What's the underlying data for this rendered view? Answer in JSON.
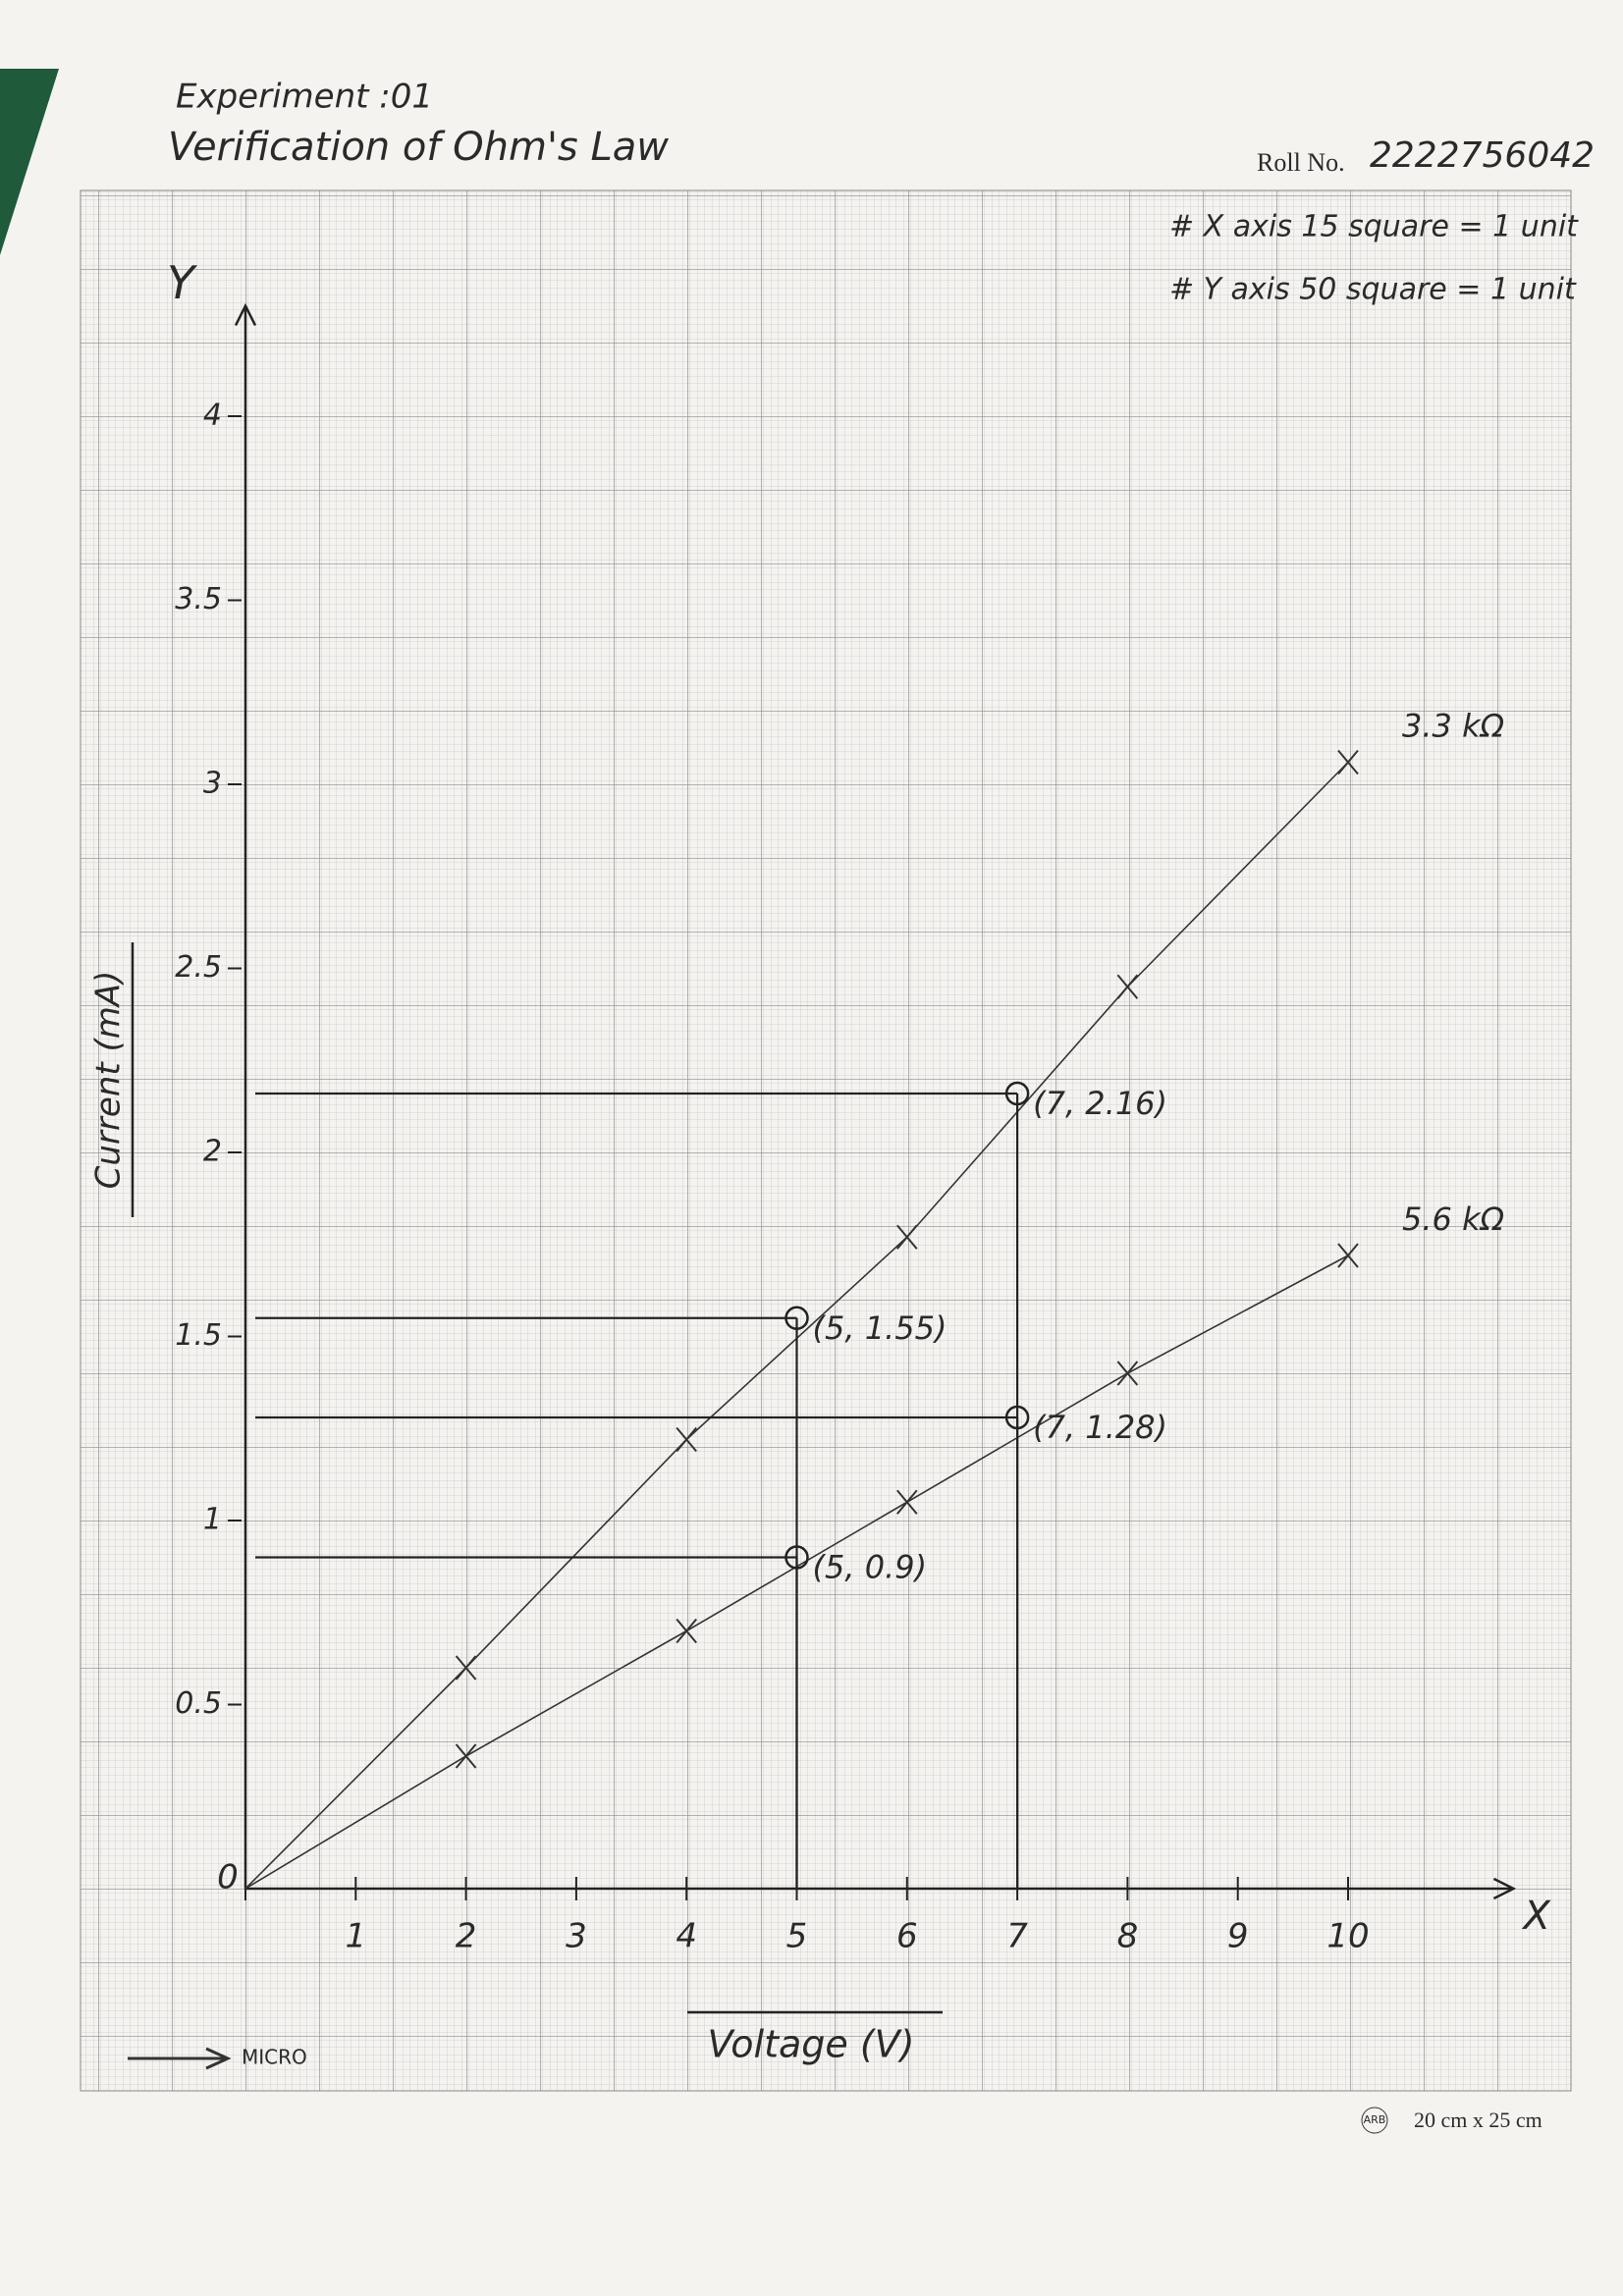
{
  "header": {
    "experiment": "Experiment :01",
    "title": "Verification of Ohm's Law",
    "roll_label": "Roll No.",
    "roll_number": "2222756042",
    "notes": [
      "# X axis 15 square = 1 unit",
      "# Y axis 50 square = 1 unit"
    ]
  },
  "footer": {
    "brand": "MICRO",
    "maker": "ARB",
    "size": "20 cm x 25 cm"
  },
  "chart_data": {
    "type": "line",
    "x_label": "Voltage (V)",
    "y_label": "Current (mA)",
    "x_axis_letter": "X",
    "y_axis_letter": "Y",
    "x": [
      0,
      2,
      4,
      6,
      8,
      10
    ],
    "series": [
      {
        "name": "3.3 kΩ",
        "color": "#333333",
        "values": [
          0,
          0.6,
          1.22,
          1.77,
          2.45,
          3.06
        ]
      },
      {
        "name": "5.6 kΩ",
        "color": "#333333",
        "values": [
          0,
          0.36,
          0.7,
          1.05,
          1.4,
          1.72
        ]
      }
    ],
    "annotations": [
      {
        "text": "(7, 2.16)",
        "x": 7,
        "y": 2.16
      },
      {
        "text": "(5, 1.55)",
        "x": 5,
        "y": 1.55
      },
      {
        "text": "(7, 1.28)",
        "x": 7,
        "y": 1.28
      },
      {
        "text": "(5, 0.9)",
        "x": 5,
        "y": 0.9
      }
    ],
    "xlim": [
      0,
      11.5
    ],
    "ylim": [
      0,
      4.3
    ],
    "xticks": [
      0,
      1,
      2,
      3,
      4,
      5,
      6,
      7,
      8,
      9,
      10
    ],
    "yticks": [
      0.5,
      1,
      1.5,
      2,
      2.5,
      3,
      3.5,
      4
    ]
  }
}
